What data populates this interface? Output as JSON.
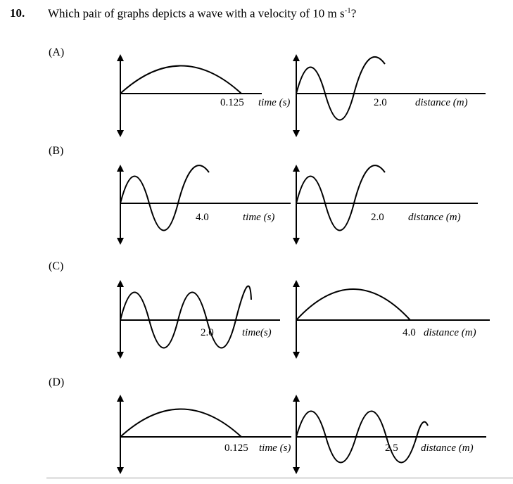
{
  "question": {
    "number": "10.",
    "text_before": "Which pair of graphs depicts a wave with a velocity of 10 m s",
    "superscript": "-1",
    "text_after": "?"
  },
  "options": [
    {
      "label": "(A)",
      "left_graph": {
        "tick": "0.125",
        "axis": "time (s)"
      },
      "right_graph": {
        "tick": "2.0",
        "axis": "distance (m)"
      }
    },
    {
      "label": "(B)",
      "left_graph": {
        "tick": "4.0",
        "axis": "time (s)"
      },
      "right_graph": {
        "tick": "2.0",
        "axis": "distance (m)"
      }
    },
    {
      "label": "(C)",
      "left_graph": {
        "tick": "2.0",
        "axis": "time(s)"
      },
      "right_graph": {
        "tick": "4.0",
        "axis": "distance (m)"
      }
    },
    {
      "label": "(D)",
      "left_graph": {
        "tick": "0.125",
        "axis": "time (s)"
      },
      "right_graph": {
        "tick": "2.5",
        "axis": "distance (m)"
      }
    }
  ]
}
